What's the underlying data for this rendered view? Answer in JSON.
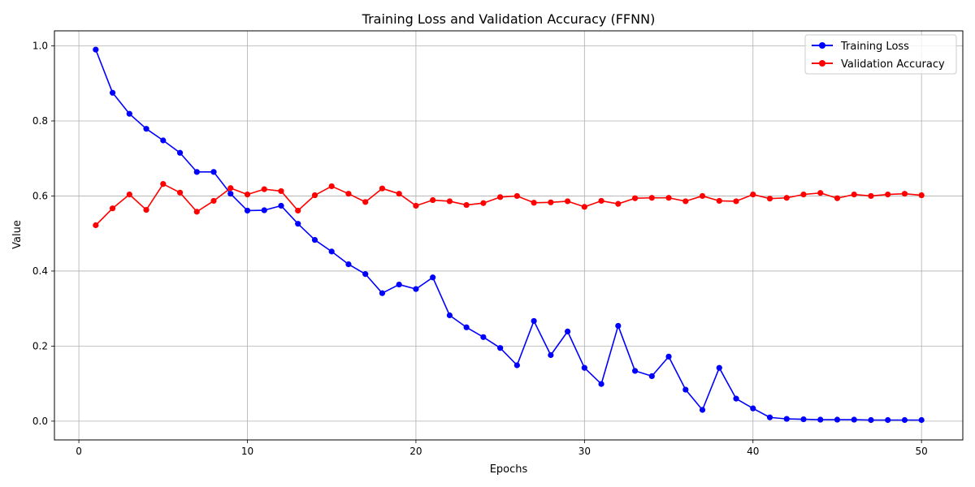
{
  "chart_data": {
    "type": "line",
    "title": "Training Loss and Validation Accuracy (FFNN)",
    "xlabel": "Epochs",
    "ylabel": "Value",
    "xlim": [
      -1.45,
      52.45
    ],
    "ylim": [
      -0.05,
      1.04
    ],
    "xticks": [
      0,
      10,
      20,
      30,
      40,
      50
    ],
    "yticks": [
      0.0,
      0.2,
      0.4,
      0.6,
      0.8,
      1.0
    ],
    "xtick_labels": [
      "0",
      "10",
      "20",
      "30",
      "40",
      "50"
    ],
    "ytick_labels": [
      "0.0",
      "0.2",
      "0.4",
      "0.6",
      "0.8",
      "1.0"
    ],
    "grid": true,
    "legend_position": "top-right",
    "x": [
      1,
      2,
      3,
      4,
      5,
      6,
      7,
      8,
      9,
      10,
      11,
      12,
      13,
      14,
      15,
      16,
      17,
      18,
      19,
      20,
      21,
      22,
      23,
      24,
      25,
      26,
      27,
      28,
      29,
      30,
      31,
      32,
      33,
      34,
      35,
      36,
      37,
      38,
      39,
      40,
      41,
      42,
      43,
      44,
      45,
      46,
      47,
      48,
      49,
      50
    ],
    "series": [
      {
        "name": "Training Loss",
        "color": "#0000ff",
        "values": [
          0.99,
          0.875,
          0.819,
          0.779,
          0.748,
          0.715,
          0.664,
          0.664,
          0.606,
          0.561,
          0.562,
          0.574,
          0.526,
          0.483,
          0.452,
          0.418,
          0.392,
          0.341,
          0.364,
          0.352,
          0.383,
          0.282,
          0.25,
          0.224,
          0.195,
          0.149,
          0.267,
          0.176,
          0.239,
          0.142,
          0.099,
          0.254,
          0.134,
          0.12,
          0.172,
          0.084,
          0.03,
          0.142,
          0.06,
          0.034,
          0.01,
          0.006,
          0.005,
          0.004,
          0.004,
          0.004,
          0.003,
          0.003,
          0.003,
          0.003
        ]
      },
      {
        "name": "Validation Accuracy",
        "color": "#ff0000",
        "values": [
          0.522,
          0.567,
          0.604,
          0.563,
          0.632,
          0.609,
          0.558,
          0.587,
          0.621,
          0.604,
          0.618,
          0.613,
          0.561,
          0.602,
          0.626,
          0.606,
          0.584,
          0.62,
          0.606,
          0.574,
          0.589,
          0.586,
          0.576,
          0.581,
          0.597,
          0.6,
          0.582,
          0.583,
          0.586,
          0.571,
          0.587,
          0.579,
          0.594,
          0.595,
          0.595,
          0.586,
          0.6,
          0.587,
          0.586,
          0.604,
          0.593,
          0.595,
          0.604,
          0.608,
          0.594,
          0.604,
          0.6,
          0.604,
          0.606,
          0.602
        ]
      }
    ]
  }
}
